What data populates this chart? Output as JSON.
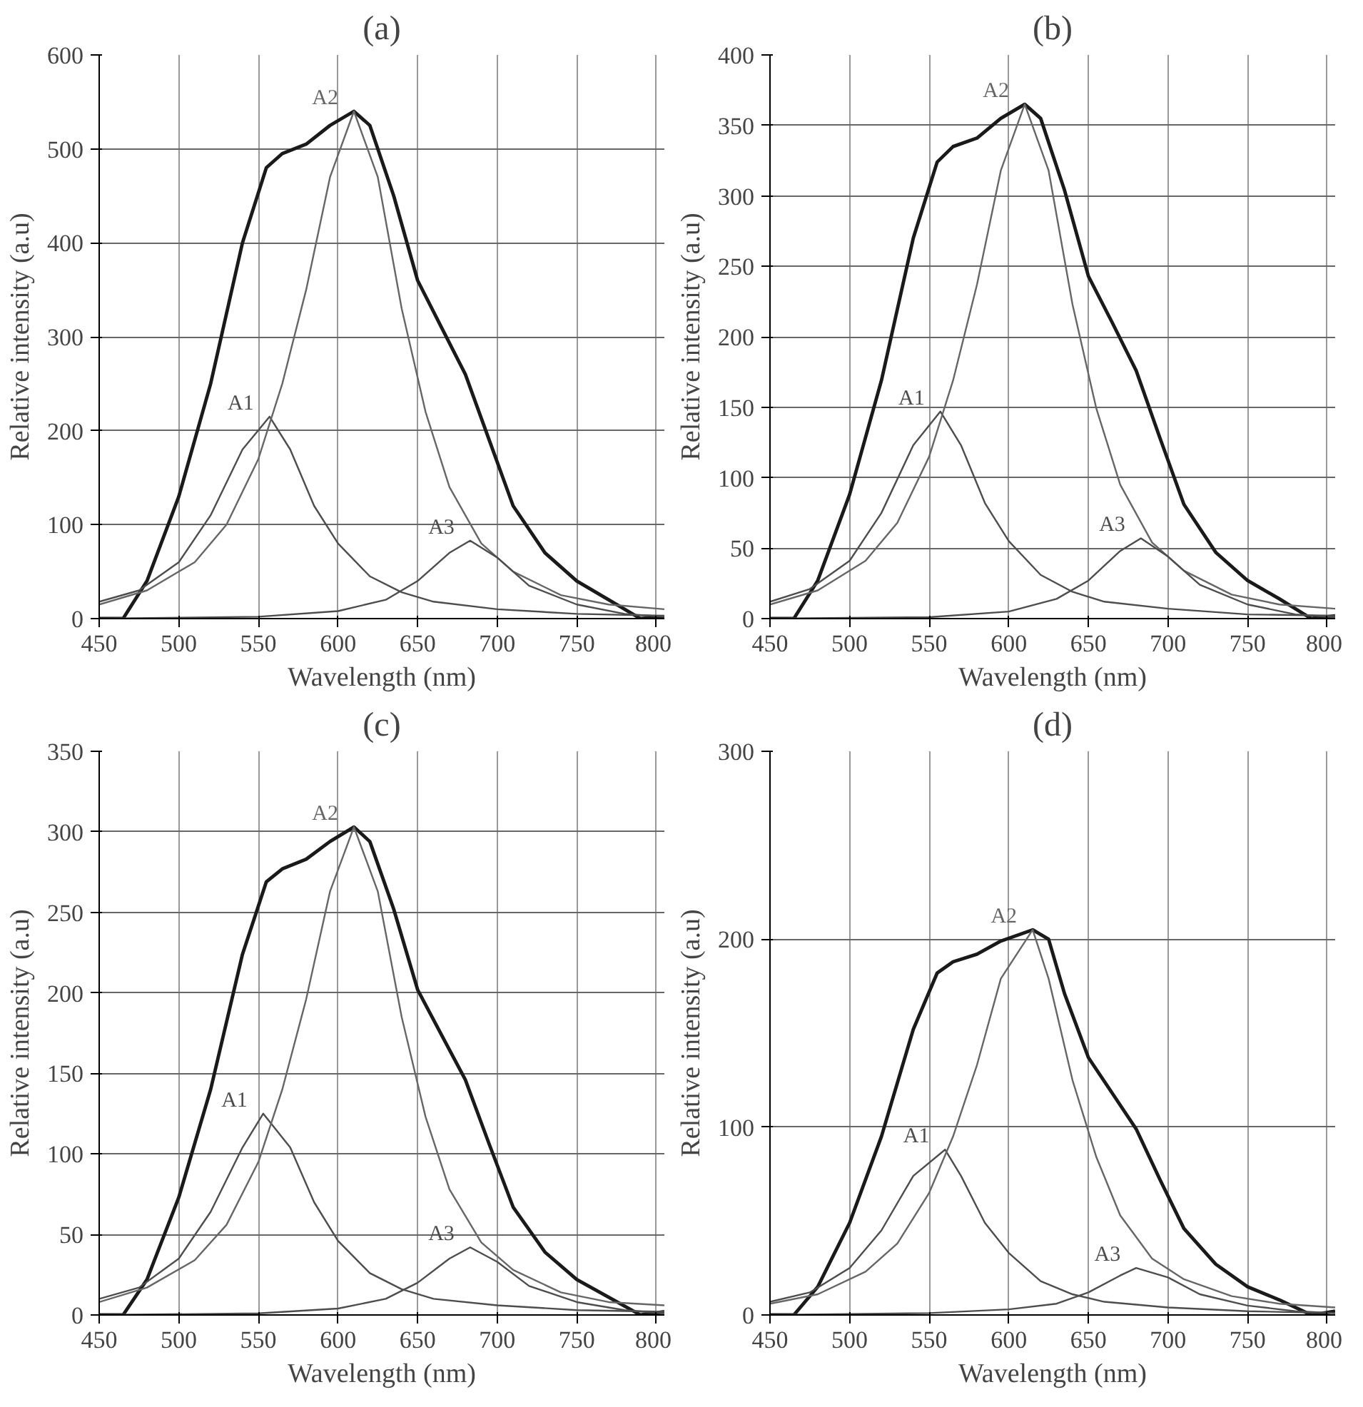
{
  "chart_data": [
    {
      "type": "line",
      "title": "(a)",
      "xlabel": "Wavelength (nm)",
      "ylabel": "Relative intensity (a.u)",
      "xlim": [
        450,
        805
      ],
      "ylim": [
        0,
        600
      ],
      "xticks": [
        450,
        500,
        550,
        600,
        650,
        700,
        750,
        800
      ],
      "yticks": [
        0,
        100,
        200,
        300,
        400,
        500,
        600
      ],
      "grid": true,
      "marker": "none",
      "series": [
        {
          "color": "#1a1a1a",
          "x": [
            450,
            465,
            480,
            500,
            520,
            540,
            555,
            565,
            580,
            595,
            610,
            620,
            635,
            650,
            665,
            680,
            695,
            710,
            730,
            750,
            770,
            790,
            805
          ],
          "values": [
            0,
            0,
            40,
            130,
            250,
            400,
            480,
            495,
            505,
            525,
            540,
            525,
            450,
            360,
            310,
            260,
            190,
            120,
            70,
            40,
            20,
            0,
            2
          ]
        },
        {
          "name": "A1",
          "color": "#4d4d4d",
          "x": [
            450,
            475,
            500,
            520,
            540,
            557,
            570,
            585,
            600,
            620,
            640,
            660,
            700,
            750,
            805
          ],
          "values": [
            18,
            30,
            60,
            110,
            180,
            215,
            180,
            120,
            80,
            45,
            28,
            18,
            10,
            5,
            3
          ]
        },
        {
          "name": "A2",
          "color": "#666666",
          "x": [
            450,
            480,
            510,
            530,
            550,
            565,
            580,
            595,
            610,
            625,
            640,
            655,
            670,
            690,
            710,
            740,
            770,
            805
          ],
          "values": [
            15,
            30,
            60,
            100,
            170,
            250,
            350,
            470,
            540,
            470,
            330,
            220,
            140,
            80,
            50,
            25,
            15,
            10
          ]
        },
        {
          "name": "A3",
          "color": "#4d4d4d",
          "x": [
            450,
            550,
            600,
            630,
            650,
            670,
            683,
            700,
            720,
            750,
            780,
            805
          ],
          "values": [
            0,
            2,
            8,
            20,
            40,
            70,
            83,
            65,
            35,
            15,
            5,
            2
          ]
        }
      ]
    },
    {
      "type": "line",
      "title": "(b)",
      "xlabel": "Wavelength (nm)",
      "ylabel": "Relative intensity (a.u)",
      "xlim": [
        450,
        805
      ],
      "ylim": [
        0,
        400
      ],
      "xticks": [
        450,
        500,
        550,
        600,
        650,
        700,
        750,
        800
      ],
      "yticks": [
        0,
        50,
        100,
        150,
        200,
        250,
        300,
        350,
        400
      ],
      "grid": true,
      "marker": "none",
      "series": [
        {
          "color": "#1a1a1a",
          "x": [
            450,
            465,
            480,
            500,
            520,
            540,
            555,
            565,
            580,
            595,
            610,
            620,
            635,
            650,
            665,
            680,
            695,
            710,
            730,
            750,
            770,
            790,
            805
          ],
          "values": [
            0,
            0,
            27,
            88,
            169,
            270,
            324,
            335,
            341,
            355,
            365,
            355,
            304,
            243,
            210,
            176,
            128,
            81,
            47,
            27,
            14,
            0,
            2
          ]
        },
        {
          "name": "A1",
          "color": "#4d4d4d",
          "x": [
            450,
            475,
            500,
            520,
            540,
            557,
            570,
            585,
            600,
            620,
            640,
            660,
            700,
            750,
            805
          ],
          "values": [
            12,
            21,
            41,
            75,
            123,
            147,
            123,
            82,
            55,
            31,
            19,
            12,
            7,
            3,
            2
          ]
        },
        {
          "name": "A2",
          "color": "#666666",
          "x": [
            450,
            480,
            510,
            530,
            550,
            565,
            580,
            595,
            610,
            625,
            640,
            655,
            670,
            690,
            710,
            740,
            770,
            805
          ],
          "values": [
            10,
            20,
            41,
            68,
            115,
            169,
            237,
            318,
            365,
            318,
            223,
            149,
            95,
            54,
            34,
            17,
            10,
            7
          ]
        },
        {
          "name": "A3",
          "color": "#4d4d4d",
          "x": [
            450,
            550,
            600,
            630,
            650,
            670,
            683,
            700,
            720,
            750,
            780,
            805
          ],
          "values": [
            0,
            1,
            5,
            14,
            27,
            48,
            57,
            44,
            24,
            10,
            3,
            1
          ]
        }
      ]
    },
    {
      "type": "line",
      "title": "(c)",
      "xlabel": "Wavelength (nm)",
      "ylabel": "Relative intensity (a.u)",
      "xlim": [
        450,
        805
      ],
      "ylim": [
        0,
        350
      ],
      "xticks": [
        450,
        500,
        550,
        600,
        650,
        700,
        750,
        800
      ],
      "yticks": [
        0,
        50,
        100,
        150,
        200,
        250,
        300,
        350
      ],
      "grid": true,
      "marker": "none",
      "series": [
        {
          "color": "#1a1a1a",
          "x": [
            450,
            465,
            480,
            500,
            520,
            540,
            555,
            565,
            580,
            595,
            610,
            620,
            635,
            650,
            665,
            680,
            695,
            710,
            730,
            750,
            770,
            790,
            805
          ],
          "values": [
            0,
            0,
            22,
            73,
            140,
            224,
            269,
            277,
            283,
            294,
            303,
            294,
            252,
            202,
            174,
            146,
            106,
            67,
            39,
            22,
            11,
            0,
            2
          ]
        },
        {
          "name": "A1",
          "color": "#4d4d4d",
          "x": [
            450,
            475,
            500,
            520,
            540,
            553,
            570,
            585,
            600,
            620,
            640,
            660,
            700,
            750,
            805
          ],
          "values": [
            10,
            17,
            35,
            64,
            104,
            125,
            104,
            70,
            46,
            26,
            16,
            10,
            6,
            3,
            2
          ]
        },
        {
          "name": "A2",
          "color": "#666666",
          "x": [
            450,
            480,
            510,
            530,
            550,
            565,
            580,
            595,
            610,
            625,
            640,
            655,
            670,
            690,
            710,
            740,
            770,
            805
          ],
          "values": [
            8,
            17,
            34,
            56,
            95,
            140,
            196,
            263,
            303,
            263,
            185,
            123,
            78,
            45,
            28,
            14,
            8,
            6
          ]
        },
        {
          "name": "A3",
          "color": "#4d4d4d",
          "x": [
            450,
            550,
            600,
            630,
            650,
            670,
            683,
            700,
            720,
            750,
            780,
            805
          ],
          "values": [
            0,
            1,
            4,
            10,
            20,
            35,
            42,
            33,
            18,
            8,
            3,
            1
          ]
        }
      ]
    },
    {
      "type": "line",
      "title": "(d)",
      "xlabel": "Wavelength (nm)",
      "ylabel": "Relative intensity (a.u)",
      "xlim": [
        450,
        805
      ],
      "ylim": [
        0,
        300
      ],
      "xticks": [
        450,
        500,
        550,
        600,
        650,
        700,
        750,
        800
      ],
      "yticks": [
        0,
        100,
        200,
        300
      ],
      "grid": true,
      "marker": "none",
      "series": [
        {
          "color": "#1a1a1a",
          "x": [
            450,
            465,
            480,
            500,
            520,
            540,
            555,
            565,
            580,
            595,
            615,
            625,
            635,
            650,
            665,
            680,
            695,
            710,
            730,
            750,
            770,
            790,
            805
          ],
          "values": [
            0,
            0,
            15,
            49,
            95,
            152,
            182,
            188,
            192,
            199,
            205,
            200,
            171,
            137,
            118,
            99,
            72,
            46,
            27,
            15,
            8,
            0,
            2
          ]
        },
        {
          "name": "A1",
          "color": "#4d4d4d",
          "x": [
            450,
            475,
            500,
            520,
            540,
            560,
            570,
            585,
            600,
            620,
            640,
            660,
            700,
            750,
            805
          ],
          "values": [
            7,
            12,
            25,
            45,
            74,
            88,
            74,
            49,
            33,
            18,
            11,
            7,
            4,
            2,
            1
          ]
        },
        {
          "name": "A2",
          "color": "#666666",
          "x": [
            450,
            480,
            510,
            530,
            550,
            565,
            580,
            595,
            615,
            625,
            640,
            655,
            670,
            690,
            710,
            740,
            770,
            805
          ],
          "values": [
            6,
            11,
            23,
            38,
            65,
            95,
            133,
            179,
            205,
            179,
            125,
            84,
            53,
            30,
            19,
            10,
            6,
            4
          ]
        },
        {
          "name": "A3",
          "color": "#4d4d4d",
          "x": [
            450,
            550,
            600,
            630,
            650,
            670,
            680,
            700,
            720,
            750,
            780,
            805
          ],
          "values": [
            0,
            1,
            3,
            6,
            12,
            21,
            25,
            20,
            11,
            5,
            2,
            1
          ]
        }
      ]
    }
  ]
}
